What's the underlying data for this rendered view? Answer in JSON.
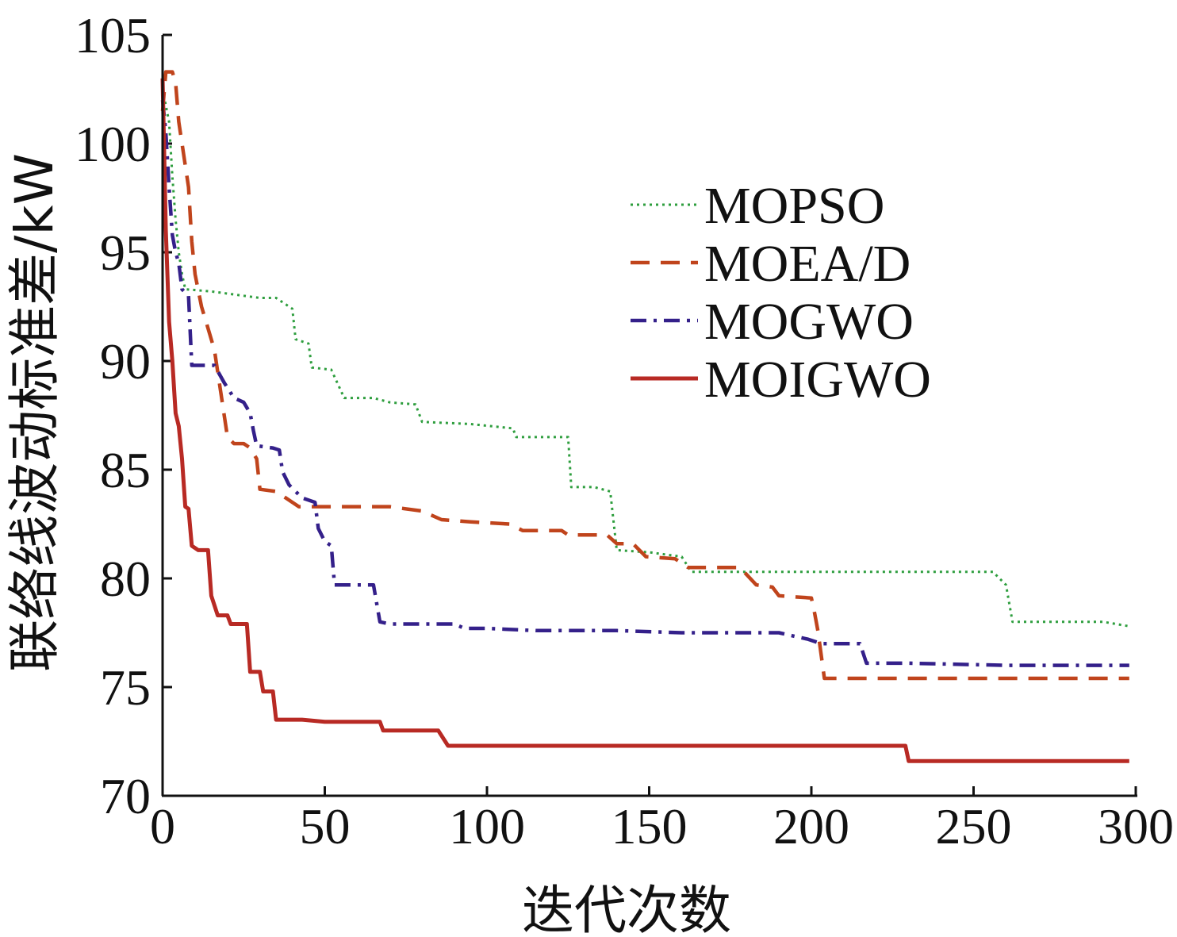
{
  "chart_data": {
    "type": "line",
    "title": "",
    "xlabel": "迭代次数",
    "ylabel": "联络线波动标准差/kW",
    "xlim": [
      0,
      300
    ],
    "ylim": [
      70,
      105
    ],
    "xticks": [
      0,
      50,
      100,
      150,
      200,
      250,
      300
    ],
    "yticks": [
      70,
      75,
      80,
      85,
      90,
      95,
      100,
      105
    ],
    "xtick_labels": [
      "0",
      "50",
      "100",
      "150",
      "200",
      "250",
      "300"
    ],
    "ytick_labels": [
      "70",
      "75",
      "80",
      "85",
      "90",
      "95",
      "100",
      "105"
    ],
    "grid": false,
    "legend_position": "upper right",
    "series": [
      {
        "name": "MOPSO",
        "color": "#2e9e3e",
        "dash": "dotted",
        "points": [
          [
            0,
            102.5
          ],
          [
            2,
            101
          ],
          [
            3,
            98.5
          ],
          [
            4,
            96.5
          ],
          [
            5,
            95
          ],
          [
            6,
            94
          ],
          [
            7,
            93.3
          ],
          [
            15,
            93.2
          ],
          [
            25,
            93.0
          ],
          [
            30,
            92.9
          ],
          [
            35,
            92.9
          ],
          [
            40,
            92.4
          ],
          [
            41,
            91.0
          ],
          [
            45,
            90.8
          ],
          [
            46,
            89.7
          ],
          [
            52,
            89.6
          ],
          [
            56,
            88.3
          ],
          [
            65,
            88.3
          ],
          [
            70,
            88.1
          ],
          [
            78,
            88.0
          ],
          [
            80,
            87.2
          ],
          [
            95,
            87.1
          ],
          [
            108,
            86.9
          ],
          [
            109,
            86.5
          ],
          [
            125,
            86.5
          ],
          [
            126,
            84.2
          ],
          [
            133,
            84.2
          ],
          [
            138,
            84.0
          ],
          [
            140,
            81.3
          ],
          [
            150,
            81.2
          ],
          [
            160,
            81.0
          ],
          [
            163,
            80.3
          ],
          [
            200,
            80.3
          ],
          [
            220,
            80.3
          ],
          [
            256,
            80.3
          ],
          [
            260,
            79.7
          ],
          [
            262,
            78.0
          ],
          [
            290,
            78.0
          ],
          [
            298,
            77.8
          ]
        ]
      },
      {
        "name": "MOEA/D",
        "color": "#c0441c",
        "dash": "dashed",
        "points": [
          [
            0,
            101.5
          ],
          [
            1,
            103.3
          ],
          [
            3,
            103.3
          ],
          [
            4,
            102.8
          ],
          [
            5,
            101
          ],
          [
            6,
            100
          ],
          [
            7,
            99.0
          ],
          [
            8,
            98.0
          ],
          [
            9,
            95.5
          ],
          [
            10,
            94.0
          ],
          [
            12,
            92.5
          ],
          [
            14,
            91.5
          ],
          [
            16,
            90.5
          ],
          [
            18,
            88.5
          ],
          [
            20,
            86.5
          ],
          [
            22,
            86.2
          ],
          [
            25,
            86.2
          ],
          [
            27,
            86.0
          ],
          [
            29,
            85.5
          ],
          [
            30,
            84.1
          ],
          [
            35,
            84.0
          ],
          [
            40,
            83.5
          ],
          [
            42,
            83.3
          ],
          [
            50,
            83.3
          ],
          [
            70,
            83.3
          ],
          [
            80,
            83.1
          ],
          [
            86,
            82.7
          ],
          [
            95,
            82.6
          ],
          [
            107,
            82.5
          ],
          [
            111,
            82.2
          ],
          [
            123,
            82.2
          ],
          [
            125,
            82.0
          ],
          [
            137,
            82.0
          ],
          [
            140,
            81.6
          ],
          [
            145,
            81.6
          ],
          [
            149,
            81.0
          ],
          [
            158,
            80.9
          ],
          [
            162,
            80.5
          ],
          [
            178,
            80.5
          ],
          [
            183,
            79.7
          ],
          [
            188,
            79.6
          ],
          [
            190,
            79.2
          ],
          [
            200,
            79.1
          ],
          [
            201,
            78.4
          ],
          [
            202,
            77.6
          ],
          [
            203,
            76.5
          ],
          [
            204,
            75.4
          ],
          [
            210,
            75.4
          ],
          [
            240,
            75.4
          ],
          [
            298,
            75.4
          ]
        ]
      },
      {
        "name": "MOGWO",
        "color": "#34208a",
        "dash": "dashdot",
        "points": [
          [
            0,
            102
          ],
          [
            1,
            100.5
          ],
          [
            2,
            98.0
          ],
          [
            3,
            95.8
          ],
          [
            4,
            95.0
          ],
          [
            5,
            94.5
          ],
          [
            6,
            93.3
          ],
          [
            8,
            93.0
          ],
          [
            9,
            89.8
          ],
          [
            13,
            89.8
          ],
          [
            16,
            89.8
          ],
          [
            19,
            89.0
          ],
          [
            22,
            88.3
          ],
          [
            25,
            88.1
          ],
          [
            27,
            87.6
          ],
          [
            28,
            86.8
          ],
          [
            29,
            86.1
          ],
          [
            34,
            86.0
          ],
          [
            36,
            85.9
          ],
          [
            37,
            84.9
          ],
          [
            39,
            84.3
          ],
          [
            41,
            84.0
          ],
          [
            43,
            83.7
          ],
          [
            47,
            83.5
          ],
          [
            48,
            82.3
          ],
          [
            50,
            81.7
          ],
          [
            52,
            81.5
          ],
          [
            53,
            79.7
          ],
          [
            58,
            79.7
          ],
          [
            65,
            79.7
          ],
          [
            67,
            78.0
          ],
          [
            70,
            77.9
          ],
          [
            90,
            77.9
          ],
          [
            93,
            77.7
          ],
          [
            100,
            77.7
          ],
          [
            115,
            77.6
          ],
          [
            140,
            77.6
          ],
          [
            160,
            77.5
          ],
          [
            190,
            77.5
          ],
          [
            196,
            77.3
          ],
          [
            199,
            77.2
          ],
          [
            203,
            77.0
          ],
          [
            215,
            77.0
          ],
          [
            217,
            76.1
          ],
          [
            230,
            76.1
          ],
          [
            260,
            76.0
          ],
          [
            298,
            76.0
          ]
        ]
      },
      {
        "name": "MOIGWO",
        "color": "#b82a24",
        "dash": "solid",
        "points": [
          [
            0,
            103
          ],
          [
            1,
            96
          ],
          [
            2,
            91.8
          ],
          [
            3,
            90.0
          ],
          [
            4,
            87.6
          ],
          [
            5,
            87.0
          ],
          [
            6,
            85.5
          ],
          [
            7,
            83.3
          ],
          [
            8,
            83.2
          ],
          [
            9,
            81.5
          ],
          [
            11,
            81.3
          ],
          [
            14,
            81.3
          ],
          [
            15,
            79.2
          ],
          [
            17,
            78.3
          ],
          [
            20,
            78.3
          ],
          [
            21,
            77.9
          ],
          [
            26,
            77.9
          ],
          [
            27,
            75.7
          ],
          [
            30,
            75.7
          ],
          [
            31,
            74.8
          ],
          [
            34,
            74.8
          ],
          [
            35,
            73.5
          ],
          [
            43,
            73.5
          ],
          [
            50,
            73.4
          ],
          [
            67,
            73.4
          ],
          [
            68,
            73.0
          ],
          [
            85,
            73.0
          ],
          [
            88,
            72.3
          ],
          [
            100,
            72.3
          ],
          [
            150,
            72.3
          ],
          [
            200,
            72.3
          ],
          [
            229,
            72.3
          ],
          [
            230,
            71.6
          ],
          [
            245,
            71.6
          ],
          [
            280,
            71.6
          ],
          [
            298,
            71.6
          ]
        ]
      }
    ]
  }
}
